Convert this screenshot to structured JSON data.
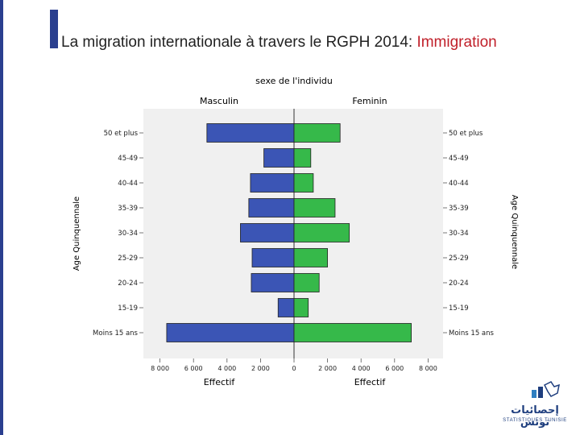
{
  "colors": {
    "male": "#3b55b5",
    "female": "#36b94a",
    "accent": "#2a3f8f",
    "highlight": "#c0202a",
    "panel": "#f0f0f0"
  },
  "slide": {
    "title_main": "La migration internationale à travers le RGPH 2014: ",
    "title_highlight": "Immigration"
  },
  "logo": {
    "arabic": "إحصائيات تونس",
    "english": "STATISTIQUES TUNISIE"
  },
  "chart_data": {
    "type": "bar",
    "orientation": "horizontal",
    "subtype": "population-pyramid",
    "title": "sexe de l'individu",
    "panel_titles": [
      "Masculin",
      "Feminin"
    ],
    "categories": [
      "50 et plus",
      "45-49",
      "40-44",
      "35-39",
      "30-34",
      "25-29",
      "20-24",
      "15-19",
      "Moins  15 ans"
    ],
    "series": [
      {
        "name": "Masculin",
        "values": [
          5200,
          1800,
          2600,
          2700,
          3200,
          2500,
          2550,
          950,
          7600
        ]
      },
      {
        "name": "Feminin",
        "values": [
          2750,
          1000,
          1150,
          2450,
          3300,
          2000,
          1500,
          850,
          7000
        ]
      }
    ],
    "xlabel": "Effectif",
    "ylabel": "Age Quinquennale",
    "xlim": [
      0,
      8000
    ],
    "ticks": [
      "8 000",
      "6 000",
      "4 000",
      "2 000",
      "0",
      "2 000",
      "4 000",
      "6 000",
      "8 000"
    ]
  }
}
